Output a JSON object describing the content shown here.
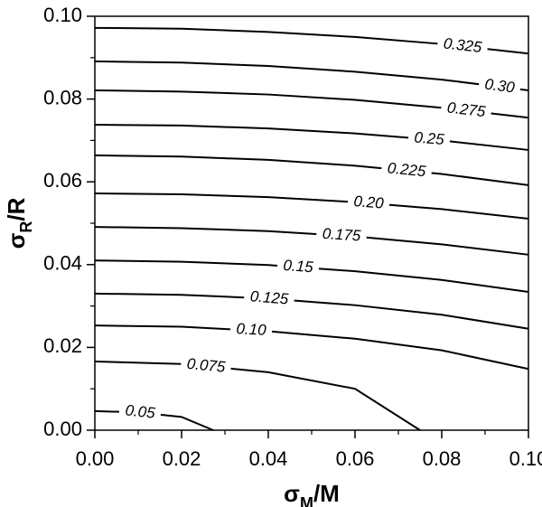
{
  "chart_data": {
    "type": "contour",
    "x_label_parts": [
      "σ",
      "M",
      "/M"
    ],
    "y_label_parts": [
      "σ",
      "R",
      "/R"
    ],
    "xlim": [
      0,
      0.1
    ],
    "ylim": [
      0,
      0.1
    ],
    "xticks": [
      {
        "value": 0,
        "label": "0.00"
      },
      {
        "value": 0.02,
        "label": "0.02"
      },
      {
        "value": 0.04,
        "label": "0.04"
      },
      {
        "value": 0.06,
        "label": "0.06"
      },
      {
        "value": 0.08,
        "label": "0.08"
      },
      {
        "value": 0.1,
        "label": "0.10"
      }
    ],
    "yticks": [
      {
        "value": 0,
        "label": "0.00"
      },
      {
        "value": 0.02,
        "label": "0.02"
      },
      {
        "value": 0.04,
        "label": "0.04"
      },
      {
        "value": 0.06,
        "label": "0.06"
      },
      {
        "value": 0.08,
        "label": "0.08"
      },
      {
        "value": 0.1,
        "label": "0.10"
      }
    ],
    "xminorticks": [
      0.01,
      0.03,
      0.05,
      0.07,
      0.09
    ],
    "yminorticks": [
      0.01,
      0.03,
      0.05,
      0.07,
      0.09
    ],
    "color": "#000000",
    "contours": [
      {
        "level": 0.325,
        "label": "0.325",
        "x": [
          0,
          0.02,
          0.04,
          0.06,
          0.08,
          0.1
        ],
        "y": [
          0.0972,
          0.097,
          0.0962,
          0.095,
          0.0933,
          0.091
        ]
      },
      {
        "level": 0.3,
        "label": "0.30",
        "x": [
          0,
          0.02,
          0.04,
          0.06,
          0.08,
          0.1
        ],
        "y": [
          0.0891,
          0.0888,
          0.088,
          0.0866,
          0.0847,
          0.0821
        ]
      },
      {
        "level": 0.275,
        "label": "0.275",
        "x": [
          0,
          0.02,
          0.04,
          0.06,
          0.08,
          0.1
        ],
        "y": [
          0.0821,
          0.0818,
          0.0811,
          0.0798,
          0.0779,
          0.0755
        ]
      },
      {
        "level": 0.25,
        "label": "0.25",
        "x": [
          0,
          0.02,
          0.04,
          0.06,
          0.08,
          0.1
        ],
        "y": [
          0.0738,
          0.0736,
          0.0729,
          0.0717,
          0.07,
          0.0677
        ]
      },
      {
        "level": 0.225,
        "label": "0.225",
        "x": [
          0,
          0.02,
          0.04,
          0.06,
          0.08,
          0.1
        ],
        "y": [
          0.0664,
          0.0661,
          0.0653,
          0.0639,
          0.0619,
          0.0592
        ]
      },
      {
        "level": 0.2,
        "label": "0.20",
        "x": [
          0,
          0.02,
          0.04,
          0.06,
          0.08,
          0.1
        ],
        "y": [
          0.0572,
          0.057,
          0.0563,
          0.0551,
          0.0534,
          0.0511
        ]
      },
      {
        "level": 0.175,
        "label": "0.175",
        "x": [
          0,
          0.02,
          0.04,
          0.06,
          0.08,
          0.1
        ],
        "y": [
          0.0491,
          0.0488,
          0.0481,
          0.0468,
          0.0449,
          0.0424
        ]
      },
      {
        "level": 0.15,
        "label": "0.15",
        "x": [
          0,
          0.02,
          0.04,
          0.06,
          0.08,
          0.1
        ],
        "y": [
          0.041,
          0.0407,
          0.0399,
          0.0384,
          0.0363,
          0.0334
        ]
      },
      {
        "level": 0.125,
        "label": "0.125",
        "x": [
          0,
          0.02,
          0.04,
          0.06,
          0.08,
          0.1
        ],
        "y": [
          0.033,
          0.0327,
          0.0318,
          0.0302,
          0.0279,
          0.0245
        ]
      },
      {
        "level": 0.1,
        "label": "0.10",
        "x": [
          0,
          0.02,
          0.04,
          0.06,
          0.08,
          0.1
        ],
        "y": [
          0.0253,
          0.025,
          0.0239,
          0.0221,
          0.0193,
          0.0148
        ]
      },
      {
        "level": 0.075,
        "label": "0.075",
        "x": [
          0,
          0.02,
          0.04,
          0.06,
          0.075
        ],
        "y": [
          0.0166,
          0.016,
          0.014,
          0.01,
          0
        ]
      },
      {
        "level": 0.05,
        "label": "0.05",
        "x": [
          0,
          0.01,
          0.02,
          0.0273
        ],
        "y": [
          0.0046,
          0.0043,
          0.0032,
          0
        ]
      }
    ]
  }
}
